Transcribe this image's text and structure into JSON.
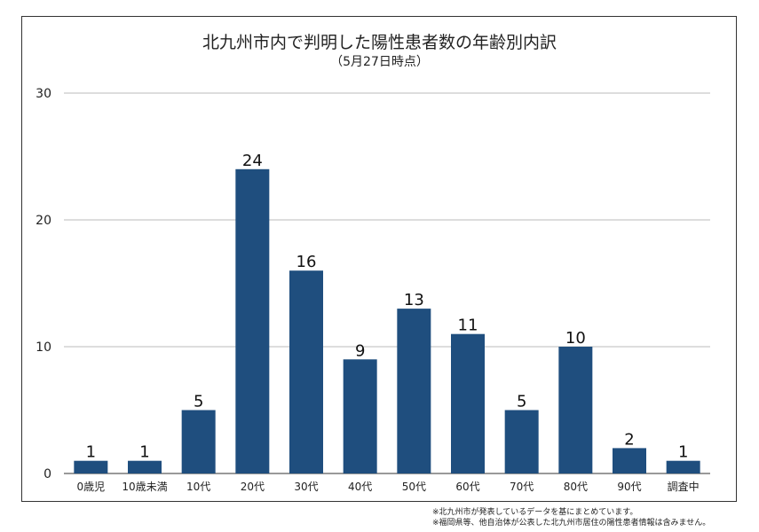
{
  "chart_data": {
    "type": "bar",
    "title": "北九州市内で判明した陽性患者数の年齢別内訳",
    "subtitle": "（5月27日時点）",
    "categories": [
      "0歳児",
      "10歳未満",
      "10代",
      "20代",
      "30代",
      "40代",
      "50代",
      "60代",
      "70代",
      "80代",
      "90代",
      "調査中"
    ],
    "values": [
      1,
      1,
      5,
      24,
      16,
      9,
      13,
      11,
      5,
      10,
      2,
      1
    ],
    "ylim": [
      0,
      30
    ],
    "yticks": [
      0,
      10,
      20,
      30
    ],
    "grid": true,
    "bar_color": "#1f4e7e",
    "xlabel": "",
    "ylabel": ""
  },
  "notes": [
    "※北九州市が発表しているデータを基にまとめています。",
    "※福岡県等、他自治体が公表した北九州市居住の陽性患者情報は含みません。"
  ]
}
